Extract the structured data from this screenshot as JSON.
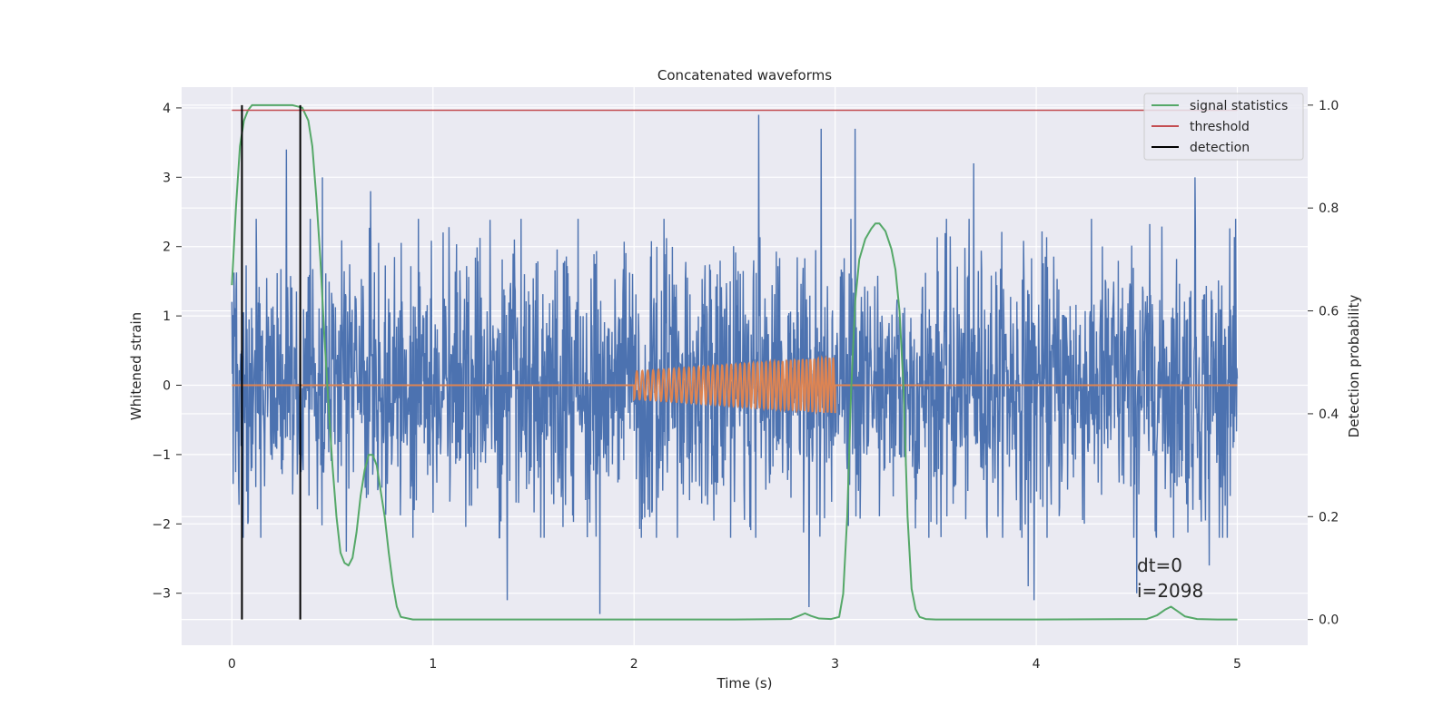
{
  "chart_data": {
    "type": "line",
    "title": "Concatenated waveforms",
    "xlabel": "Time (s)",
    "ylabel": "Whitened strain",
    "y2label": "Detection probability",
    "xlim": [
      -0.25,
      5.35
    ],
    "ylim": [
      -3.75,
      4.3
    ],
    "y2lim": [
      -0.05,
      1.035
    ],
    "x_ticks": [
      "0",
      "1",
      "2",
      "3",
      "4",
      "5"
    ],
    "y_ticks": [
      "−3",
      "−2",
      "−1",
      "0",
      "1",
      "2",
      "3",
      "4"
    ],
    "y2_ticks": [
      "0.0",
      "0.2",
      "0.4",
      "0.6",
      "0.8",
      "1.0"
    ],
    "grid": true,
    "legend_position": "top-right",
    "colors": {
      "strain": "#4c72b0",
      "injection": "#dd8452",
      "signal_statistics": "#55a868",
      "threshold": "#c44e52",
      "detection": "#000000",
      "axes_bg": "#eaeaf2",
      "grid": "#ffffff"
    },
    "series": [
      {
        "name": "whitened strain",
        "axis": "left",
        "style": "noise",
        "x_range": [
          0,
          5
        ],
        "typical_abs_range": [
          -2.2,
          2.4
        ],
        "spikes": [
          [
            0.12,
            2.4
          ],
          [
            0.27,
            3.4
          ],
          [
            0.45,
            3.0
          ],
          [
            0.69,
            2.8
          ],
          [
            1.37,
            -3.1
          ],
          [
            1.83,
            -3.3
          ],
          [
            2.62,
            3.9
          ],
          [
            2.87,
            -3.2
          ],
          [
            2.93,
            3.7
          ],
          [
            3.1,
            3.7
          ],
          [
            3.69,
            3.2
          ],
          [
            3.96,
            -2.9
          ],
          [
            3.99,
            -3.1
          ],
          [
            4.79,
            3.0
          ],
          [
            4.86,
            -2.6
          ],
          [
            0.08,
            -2.0
          ],
          [
            0.57,
            -2.4
          ],
          [
            4.5,
            -3.0
          ]
        ]
      },
      {
        "name": "injected waveform",
        "axis": "left",
        "style": "chirp",
        "x_range": [
          0,
          5
        ],
        "chirp_start": 2.0,
        "chirp_end": 3.0,
        "amplitude_start": 0.2,
        "amplitude_end": 0.4,
        "cycles": 45
      },
      {
        "name": "signal statistics",
        "axis": "right",
        "x": [
          0,
          0.02,
          0.04,
          0.06,
          0.08,
          0.1,
          0.15,
          0.2,
          0.3,
          0.35,
          0.38,
          0.4,
          0.42,
          0.44,
          0.46,
          0.48,
          0.5,
          0.52,
          0.54,
          0.56,
          0.58,
          0.6,
          0.62,
          0.64,
          0.66,
          0.68,
          0.7,
          0.72,
          0.74,
          0.76,
          0.78,
          0.8,
          0.82,
          0.84,
          0.9,
          1.5,
          2.5,
          2.78,
          2.82,
          2.85,
          2.88,
          2.92,
          2.98,
          3.02,
          3.04,
          3.06,
          3.08,
          3.1,
          3.12,
          3.15,
          3.18,
          3.2,
          3.22,
          3.25,
          3.28,
          3.3,
          3.32,
          3.34,
          3.36,
          3.38,
          3.4,
          3.42,
          3.45,
          3.5,
          4.0,
          4.55,
          4.6,
          4.64,
          4.67,
          4.7,
          4.74,
          4.8,
          4.9,
          5.0
        ],
        "values": [
          0.65,
          0.8,
          0.92,
          0.97,
          0.99,
          1.0,
          1.0,
          1.0,
          1.0,
          0.995,
          0.97,
          0.92,
          0.82,
          0.7,
          0.55,
          0.42,
          0.3,
          0.2,
          0.13,
          0.11,
          0.105,
          0.12,
          0.17,
          0.24,
          0.29,
          0.32,
          0.32,
          0.3,
          0.25,
          0.2,
          0.13,
          0.07,
          0.025,
          0.005,
          0.0,
          0.0,
          0.0,
          0.001,
          0.007,
          0.012,
          0.007,
          0.002,
          0.001,
          0.005,
          0.05,
          0.2,
          0.45,
          0.62,
          0.7,
          0.74,
          0.76,
          0.77,
          0.77,
          0.755,
          0.72,
          0.68,
          0.6,
          0.45,
          0.2,
          0.06,
          0.02,
          0.005,
          0.001,
          0.0,
          0.0,
          0.001,
          0.008,
          0.019,
          0.025,
          0.017,
          0.006,
          0.001,
          0.0,
          0.0
        ]
      },
      {
        "name": "threshold",
        "axis": "right",
        "x": [
          0,
          5
        ],
        "values": [
          0.99,
          0.99
        ]
      },
      {
        "name": "detection",
        "axis": "right",
        "style": "vlines",
        "x": [
          0.05,
          0.34
        ],
        "from": 0.0,
        "to": 1.0
      }
    ],
    "legend": [
      "signal statistics",
      "threshold",
      "detection"
    ],
    "annotation": [
      "dt=0",
      "i=2098"
    ]
  }
}
